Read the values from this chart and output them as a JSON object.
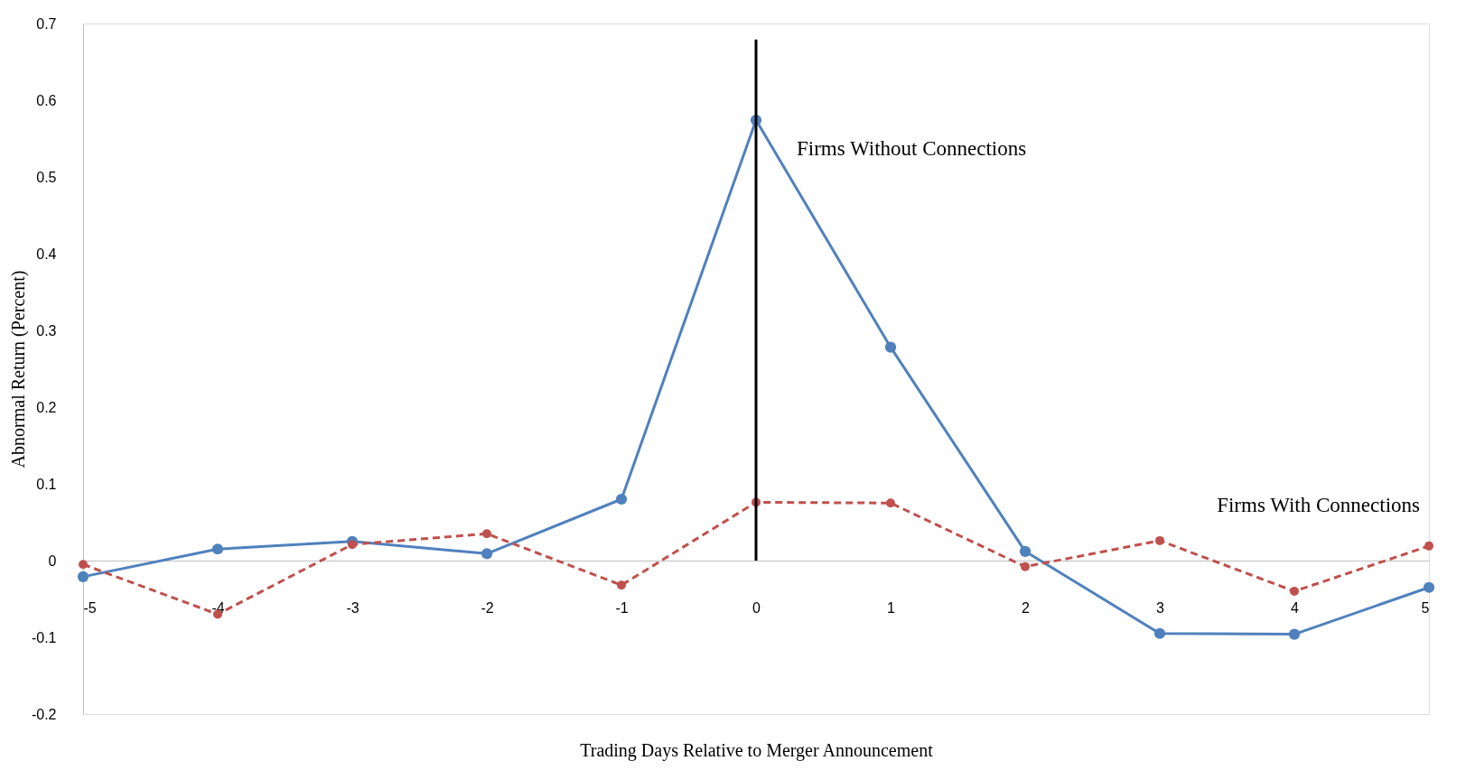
{
  "chart_data": {
    "type": "line",
    "xlabel": "Trading Days Relative to Merger Announcement",
    "ylabel": "Abnormal Return (Percent)",
    "x": [
      -5,
      -4,
      -3,
      -2,
      -1,
      0,
      1,
      2,
      3,
      4,
      5
    ],
    "series": [
      {
        "name": "Firms Without Connections",
        "color": "#4f81bd",
        "line_style": "solid",
        "values": [
          -0.021,
          0.015,
          0.025,
          0.009,
          0.08,
          0.574,
          0.278,
          0.012,
          -0.095,
          -0.096,
          -0.035
        ]
      },
      {
        "name": "Firms With Connections",
        "color": "#c0504d",
        "line_style": "dashed",
        "values": [
          -0.005,
          -0.07,
          0.021,
          0.035,
          -0.032,
          0.076,
          0.075,
          -0.008,
          0.026,
          -0.04,
          0.019
        ]
      }
    ],
    "xlim": [
      -5,
      5
    ],
    "xticks": [
      -5,
      -4,
      -3,
      -2,
      -1,
      0,
      1,
      2,
      3,
      4,
      5
    ],
    "ylim": [
      -0.2,
      0.7
    ],
    "yticks": [
      -0.2,
      -0.1,
      0,
      0.1,
      0.2,
      0.3,
      0.4,
      0.5,
      0.6,
      0.7
    ],
    "ref_lines": [
      {
        "axis": "x",
        "value": 0,
        "color": "#000000"
      }
    ],
    "marker": "circle",
    "grid": false
  }
}
